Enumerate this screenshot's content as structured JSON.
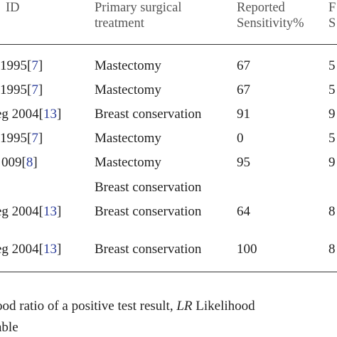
{
  "table": {
    "headers": {
      "id": "ID",
      "treatment": "Primary surgical\ntreatment",
      "sensitivity": "Reported\nSensitivity%",
      "next_col_line1": "F",
      "next_col_line2": "S"
    },
    "rows": [
      {
        "id_text": "1995[",
        "id_ref": "7",
        "id_close": "]",
        "treatment": "Mastectomy",
        "sensitivity": "67",
        "next": "5"
      },
      {
        "id_text": "1995[",
        "id_ref": "7",
        "id_close": "]",
        "treatment": "Mastectomy",
        "sensitivity": "67",
        "next": "5"
      },
      {
        "id_text": "eg 2004[",
        "id_ref": "13",
        "id_close": "]",
        "treatment": "Breast conservation",
        "sensitivity": "91",
        "next": "9"
      },
      {
        "id_text": "1995[",
        "id_ref": "7",
        "id_close": "]",
        "treatment": "Mastectomy",
        "sensitivity": "0",
        "next": "5"
      },
      {
        "id_text": "009[",
        "id_ref": "8",
        "id_close": "]",
        "treatment": "Mastectomy",
        "sensitivity": "95",
        "next": "9"
      },
      {
        "id_text": "",
        "id_ref": "",
        "id_close": "",
        "treatment": "Breast conservation",
        "sensitivity": "",
        "next": ""
      },
      {
        "id_text": "eg 2004[",
        "id_ref": "13",
        "id_close": "]",
        "treatment": "Breast conservation",
        "sensitivity": "64",
        "next": "8"
      },
      {
        "id_text": "eg 2004[",
        "id_ref": "13",
        "id_close": "]",
        "treatment": "Breast conservation",
        "sensitivity": "100",
        "next": "8"
      }
    ]
  },
  "footnote": {
    "line1_a": "ood ratio of a positive test result, ",
    "line1_b": "LR",
    "line1_c": " Likelihood",
    "line2": "able"
  }
}
